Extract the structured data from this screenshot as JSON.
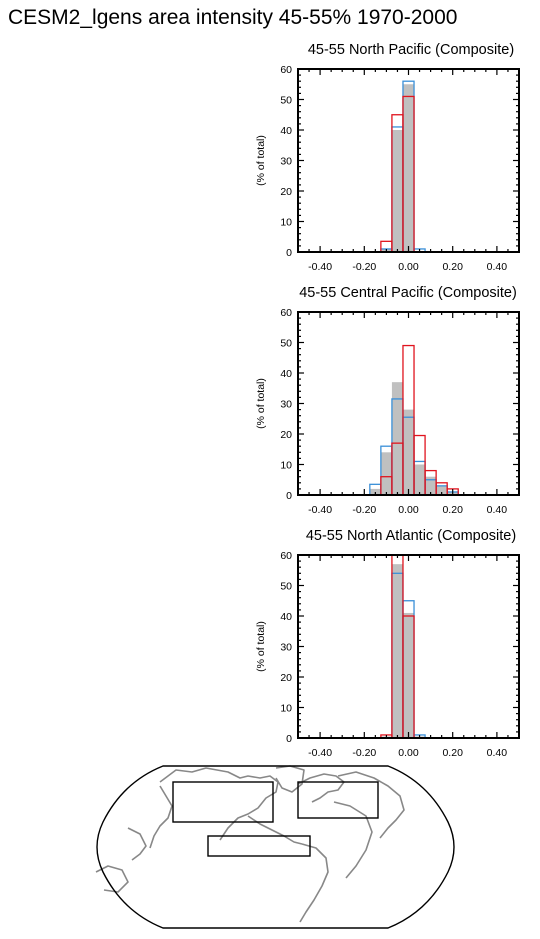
{
  "title": "CESM2_lgens area intensity 45-55% 1970-2000",
  "colors": {
    "grey_bars": "#c0c0c0",
    "blue_series": "#3a8fd8",
    "red_series": "#e0141e",
    "coast": "#888888"
  },
  "chart_data": [
    {
      "type": "bar",
      "title": "45-55 North Pacific (Composite)",
      "ylabel": "(% of total)",
      "xlabel": "",
      "xlim": [
        -0.5,
        0.5
      ],
      "ylim": [
        0,
        60
      ],
      "xticks": [
        "-0.40",
        "-0.20",
        "0.00",
        "0.20",
        "0.40"
      ],
      "yticks": [
        "0",
        "10",
        "20",
        "30",
        "40",
        "50",
        "60"
      ],
      "bin_width": 0.05,
      "bin_centers": [
        -0.1,
        -0.05,
        0.0,
        0.05
      ],
      "series": [
        {
          "color": "grey",
          "values": [
            1,
            40,
            55,
            0
          ]
        },
        {
          "color": "blue",
          "values": [
            1,
            41,
            56,
            1
          ]
        },
        {
          "color": "red",
          "values": [
            3.5,
            45,
            51,
            0
          ]
        }
      ]
    },
    {
      "type": "bar",
      "title": "45-55 Central Pacific (Composite)",
      "ylabel": "(% of total)",
      "xlabel": "",
      "xlim": [
        -0.5,
        0.5
      ],
      "ylim": [
        0,
        60
      ],
      "xticks": [
        "-0.40",
        "-0.20",
        "0.00",
        "0.20",
        "0.40"
      ],
      "yticks": [
        "0",
        "10",
        "20",
        "30",
        "40",
        "50",
        "60"
      ],
      "bin_width": 0.05,
      "bin_centers": [
        -0.15,
        -0.1,
        -0.05,
        0.0,
        0.05,
        0.1,
        0.15,
        0.2
      ],
      "series": [
        {
          "color": "grey",
          "values": [
            2,
            14,
            37,
            28,
            10,
            6,
            3,
            1
          ]
        },
        {
          "color": "blue",
          "values": [
            3.5,
            16,
            31.5,
            25.5,
            11,
            5,
            3,
            1
          ]
        },
        {
          "color": "red",
          "values": [
            0,
            6,
            17,
            49,
            19.5,
            8,
            4,
            2
          ]
        }
      ]
    },
    {
      "type": "bar",
      "title": "45-55 North Atlantic (Composite)",
      "ylabel": "(% of total)",
      "xlabel": "",
      "xlim": [
        -0.5,
        0.5
      ],
      "ylim": [
        0,
        60
      ],
      "xticks": [
        "-0.40",
        "-0.20",
        "0.00",
        "0.20",
        "0.40"
      ],
      "yticks": [
        "0",
        "10",
        "20",
        "30",
        "40",
        "50",
        "60"
      ],
      "bin_width": 0.05,
      "bin_centers": [
        -0.1,
        -0.05,
        0.0,
        0.05
      ],
      "series": [
        {
          "color": "grey",
          "values": [
            0.5,
            57,
            41,
            0.5
          ]
        },
        {
          "color": "blue",
          "values": [
            0,
            54,
            45,
            1
          ]
        },
        {
          "color": "red",
          "values": [
            1,
            60,
            40,
            0
          ]
        }
      ]
    }
  ]
}
